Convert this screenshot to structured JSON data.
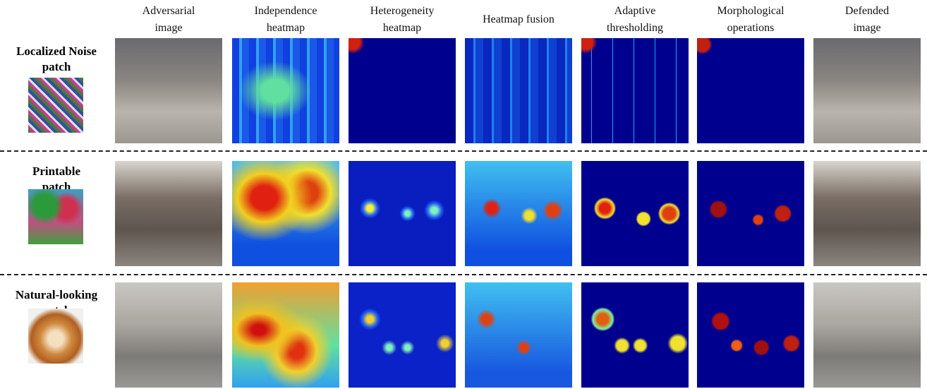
{
  "columns": [
    {
      "lines": [
        "Adversarial",
        "image"
      ]
    },
    {
      "lines": [
        "Independence",
        "heatmap"
      ]
    },
    {
      "lines": [
        "Heterogeneity",
        "heatmap"
      ]
    },
    {
      "lines": [
        "Heatmap fusion"
      ]
    },
    {
      "lines": [
        "Adaptive",
        "thresholding"
      ]
    },
    {
      "lines": [
        "Morphological",
        "operations"
      ]
    },
    {
      "lines": [
        "Defended",
        "image"
      ]
    }
  ],
  "rows": [
    {
      "lines": [
        "Localized Noise",
        "patch"
      ]
    },
    {
      "lines": [
        "Printable",
        "patch"
      ]
    },
    {
      "lines": [
        "Natural-looking",
        "patch"
      ]
    }
  ]
}
